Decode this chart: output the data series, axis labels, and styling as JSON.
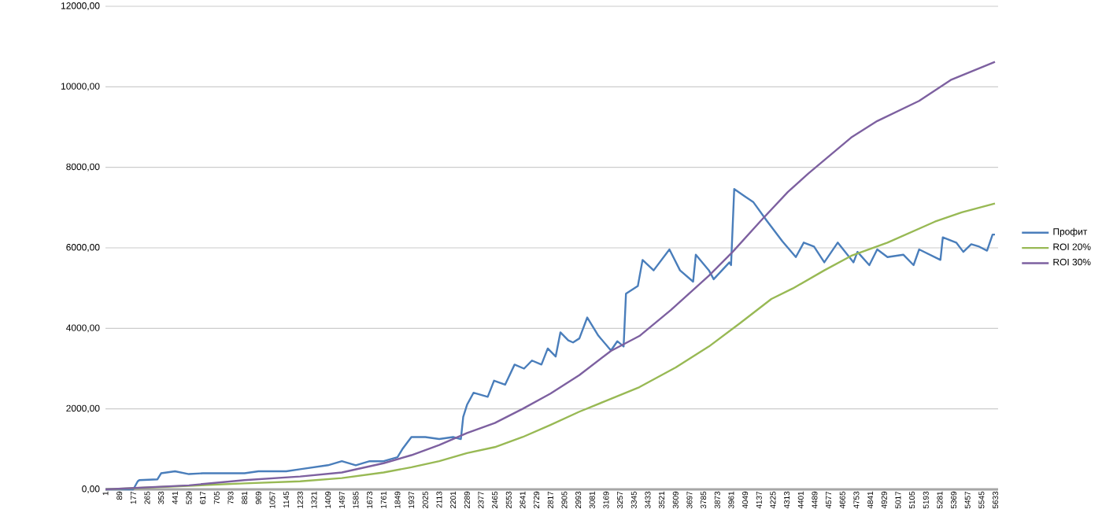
{
  "chart_data": {
    "type": "line",
    "xlim": [
      1,
      5650
    ],
    "ylim": [
      0,
      12000
    ],
    "xticks": [
      1,
      89,
      177,
      265,
      353,
      441,
      529,
      617,
      705,
      793,
      881,
      969,
      1057,
      1145,
      1233,
      1321,
      1409,
      1497,
      1585,
      1673,
      1761,
      1849,
      1937,
      2025,
      2113,
      2201,
      2289,
      2377,
      2465,
      2553,
      2641,
      2729,
      2817,
      2905,
      2993,
      3081,
      3169,
      3257,
      3345,
      3433,
      3521,
      3609,
      3697,
      3785,
      3873,
      3961,
      4049,
      4137,
      4225,
      4313,
      4401,
      4489,
      4577,
      4665,
      4753,
      4841,
      4929,
      5017,
      5105,
      5193,
      5281,
      5369,
      5457,
      5545,
      5633
    ],
    "yticks": [
      {
        "value": 0,
        "label": "0,00"
      },
      {
        "value": 2000,
        "label": "2000,00"
      },
      {
        "value": 4000,
        "label": "4000,00"
      },
      {
        "value": 6000,
        "label": "6000,00"
      },
      {
        "value": 8000,
        "label": "8000,00"
      },
      {
        "value": 10000,
        "label": "10000,00"
      },
      {
        "value": 12000,
        "label": "12000,00"
      }
    ],
    "grid": "y",
    "legend": "right",
    "line_style": "solid",
    "marker": "none",
    "series": [
      {
        "name": "Профит",
        "color": "#4a7ebb",
        "x": [
          1,
          177,
          205,
          215,
          330,
          353,
          441,
          529,
          617,
          881,
          969,
          1145,
          1233,
          1409,
          1497,
          1585,
          1673,
          1761,
          1849,
          1880,
          1937,
          2025,
          2113,
          2201,
          2250,
          2265,
          2289,
          2330,
          2420,
          2460,
          2530,
          2590,
          2650,
          2700,
          2760,
          2800,
          2850,
          2880,
          2930,
          2960,
          3000,
          3050,
          3120,
          3200,
          3240,
          3280,
          3295,
          3370,
          3400,
          3470,
          3570,
          3637,
          3720,
          3737,
          3820,
          3850,
          3950,
          3960,
          3980,
          4050,
          4100,
          4185,
          4285,
          4370,
          4420,
          4485,
          4550,
          4635,
          4735,
          4760,
          4835,
          4885,
          4950,
          5050,
          5115,
          5150,
          5285,
          5300,
          5385,
          5430,
          5480,
          5530,
          5580,
          5615,
          5630
        ],
        "values": [
          0,
          0,
          200,
          230,
          250,
          400,
          450,
          380,
          400,
          400,
          450,
          450,
          500,
          600,
          700,
          600,
          700,
          700,
          800,
          1000,
          1300,
          1300,
          1250,
          1300,
          1250,
          1800,
          2100,
          2400,
          2300,
          2700,
          2600,
          3100,
          3000,
          3200,
          3100,
          3500,
          3300,
          3900,
          3700,
          3650,
          3750,
          4270,
          3820,
          3450,
          3680,
          3550,
          4860,
          5050,
          5700,
          5440,
          5960,
          5440,
          5160,
          5830,
          5440,
          5220,
          5640,
          5570,
          7460,
          7270,
          7140,
          6680,
          6160,
          5770,
          6130,
          6030,
          5640,
          6130,
          5640,
          5900,
          5570,
          5960,
          5770,
          5830,
          5570,
          5960,
          5700,
          6260,
          6130,
          5900,
          6090,
          6030,
          5930,
          6330,
          6330
        ]
      },
      {
        "name": "ROI 20%",
        "color": "#98b954",
        "x": [
          1,
          881,
          1233,
          1497,
          1761,
          1937,
          2113,
          2289,
          2465,
          2641,
          2817,
          3000,
          3200,
          3380,
          3610,
          3820,
          4020,
          4215,
          4350,
          4550,
          4720,
          4950,
          5250,
          5420,
          5630
        ],
        "values": [
          0,
          150,
          200,
          280,
          420,
          550,
          700,
          900,
          1050,
          1300,
          1600,
          1930,
          2250,
          2540,
          3030,
          3550,
          4140,
          4730,
          4990,
          5440,
          5800,
          6130,
          6650,
          6880,
          7100
        ]
      },
      {
        "name": "ROI 30%",
        "color": "#7d60a0",
        "x": [
          1,
          529,
          881,
          1233,
          1497,
          1761,
          1937,
          2113,
          2289,
          2465,
          2641,
          2817,
          3000,
          3200,
          3380,
          3580,
          3820,
          3970,
          4150,
          4320,
          4450,
          4720,
          4885,
          5150,
          5350,
          5630
        ],
        "values": [
          0,
          100,
          230,
          320,
          420,
          650,
          850,
          1100,
          1400,
          1650,
          2000,
          2380,
          2840,
          3440,
          3810,
          4460,
          5310,
          5900,
          6680,
          7390,
          7850,
          8740,
          9150,
          9650,
          10170,
          10620
        ]
      }
    ]
  }
}
